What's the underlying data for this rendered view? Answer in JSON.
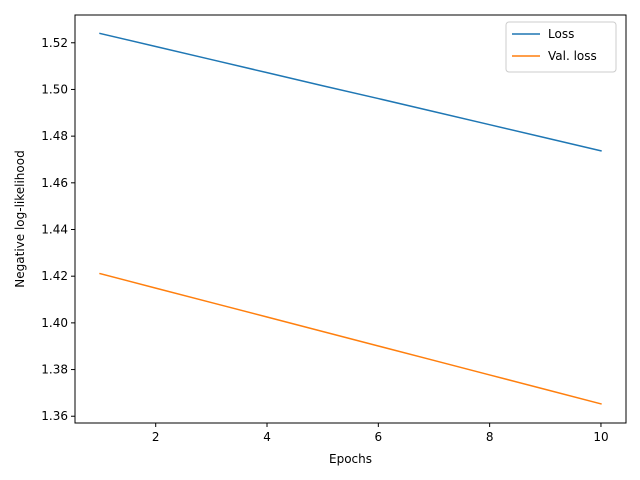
{
  "chart_data": {
    "type": "line",
    "title": "",
    "xlabel": "Epochs",
    "ylabel": "Negative log-likelihood",
    "xlim": [
      0.55,
      10.45
    ],
    "ylim": [
      1.3571,
      1.5319
    ],
    "xticks": [
      2,
      4,
      6,
      8,
      10
    ],
    "yticks": [
      1.36,
      1.38,
      1.4,
      1.42,
      1.44,
      1.46,
      1.48,
      1.5,
      1.52
    ],
    "ytick_labels": [
      "1.36",
      "1.38",
      "1.40",
      "1.42",
      "1.44",
      "1.46",
      "1.48",
      "1.50",
      "1.52"
    ],
    "grid": false,
    "legend_position": "top-right",
    "x": [
      1,
      2,
      3,
      4,
      5,
      6,
      7,
      8,
      9,
      10
    ],
    "series": [
      {
        "name": "Loss",
        "color": "#1f77b4",
        "values": [
          1.524,
          1.5184,
          1.5128,
          1.5072,
          1.5016,
          1.4961,
          1.4905,
          1.4849,
          1.4793,
          1.4737
        ]
      },
      {
        "name": "Val. loss",
        "color": "#ff7f0e",
        "values": [
          1.4211,
          1.4149,
          1.4087,
          1.4025,
          1.3963,
          1.3901,
          1.3839,
          1.3777,
          1.3715,
          1.3653
        ]
      }
    ]
  }
}
